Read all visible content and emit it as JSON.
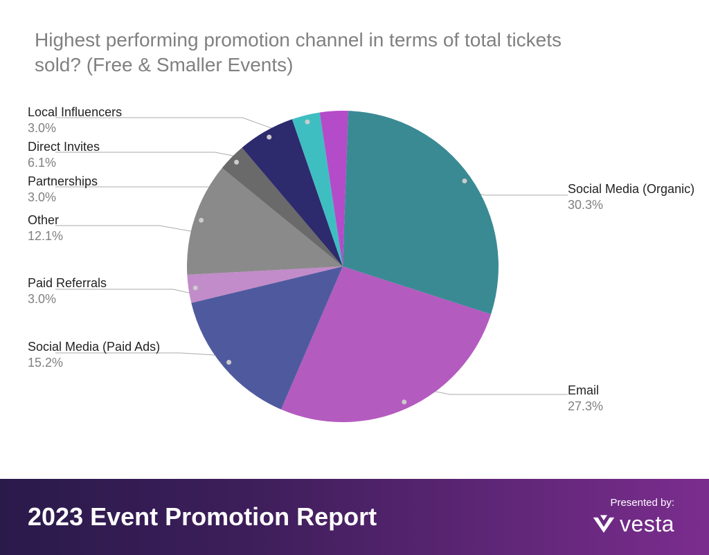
{
  "chart": {
    "type": "pie",
    "title": "Highest performing promotion channel in terms of total tickets sold? (Free & Smaller Events)",
    "title_color": "#808080",
    "title_fontsize": 28,
    "background_color": "#ffffff",
    "start_angle_deg": -88,
    "slices": [
      {
        "label": "Social Media (Organic)",
        "value": 30.3,
        "pct_text": "30.3%",
        "color": "#3a8a94"
      },
      {
        "label": "Email",
        "value": 27.3,
        "pct_text": "27.3%",
        "color": "#b45bbf"
      },
      {
        "label": "Social Media (Paid Ads)",
        "value": 15.2,
        "pct_text": "15.2%",
        "color": "#4f5a9e"
      },
      {
        "label": "Paid Referrals",
        "value": 3.0,
        "pct_text": "3.0%",
        "color": "#c28bc9"
      },
      {
        "label": "Other",
        "value": 12.1,
        "pct_text": "12.1%",
        "color": "#8a8a8a"
      },
      {
        "label": "Partnerships",
        "value": 3.0,
        "pct_text": "3.0%",
        "color": "#6a6a6a"
      },
      {
        "label": "Direct Invites",
        "value": 6.1,
        "pct_text": "6.1%",
        "color": "#2e2a6e"
      },
      {
        "label": "Local Influencers",
        "value": 3.0,
        "pct_text": "3.0%",
        "color": "#3fbec1"
      },
      {
        "label": "",
        "value": 3.0,
        "pct_text": "",
        "color": "#b44bc9",
        "unlabeled": true
      }
    ],
    "leader_dot_color": "#cccccc",
    "leader_line_color": "#aaaaaa",
    "label_fontsize": 18,
    "label_color": "#222222",
    "pct_color": "#808080"
  },
  "footer": {
    "title": "2023 Event Promotion Report",
    "presented_label": "Presented by:",
    "brand_name": "vesta",
    "gradient_from": "#2a1a4a",
    "gradient_mid": "#3d1e5a",
    "gradient_to": "#7b2d8e",
    "text_color": "#ffffff"
  }
}
